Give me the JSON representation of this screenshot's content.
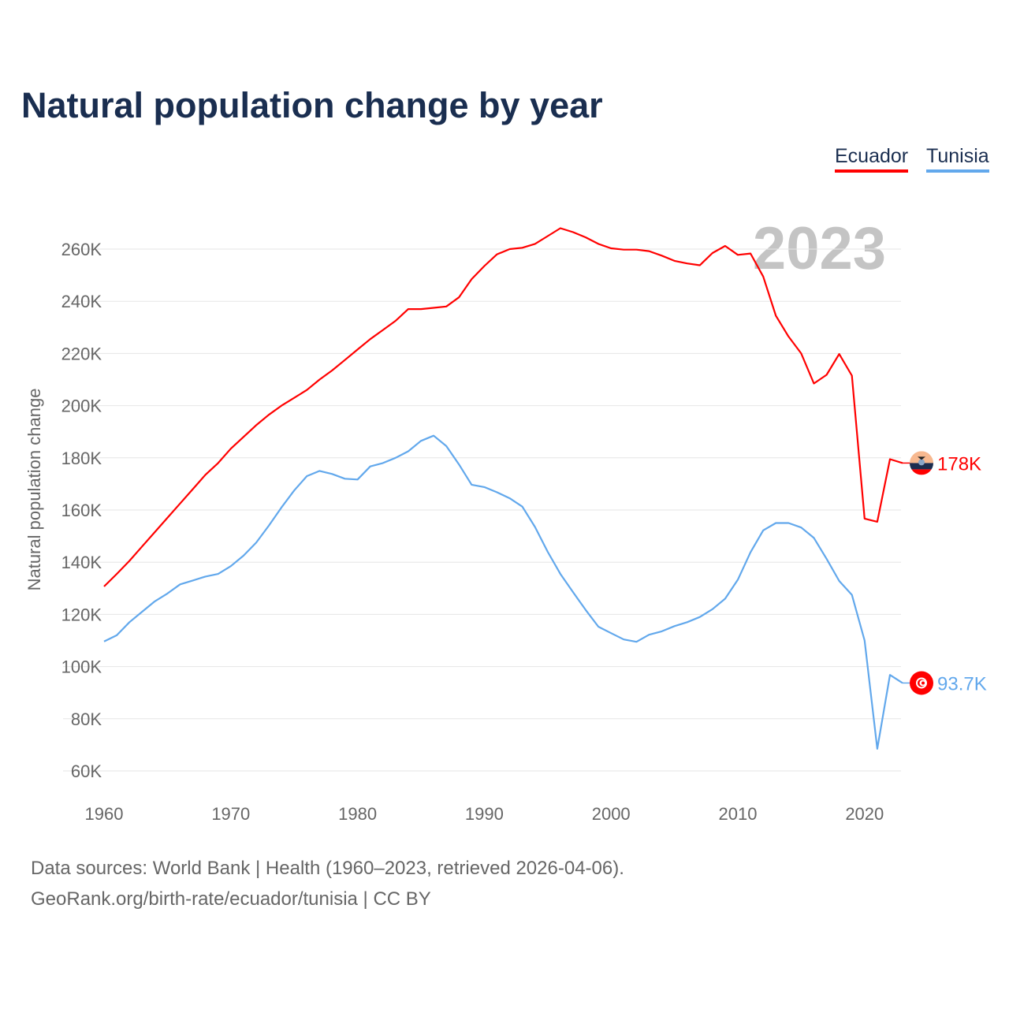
{
  "title": "Natural population change by year",
  "legend": [
    "Ecuador",
    "Tunisia"
  ],
  "footer": {
    "line1": "Data sources: World Bank | Health (1960–2023, retrieved 2026-04-06).",
    "line2": "GeoRank.org/birth-rate/ecuador/tunisia | CC BY"
  },
  "chart_data": {
    "type": "line",
    "title": "Natural population change by year",
    "ylabel": "Natural population change",
    "xlabel": "",
    "year_watermark": "2023",
    "xlim": [
      1960,
      2023
    ],
    "ylim": [
      60000,
      260000
    ],
    "x_ticks": [
      1960,
      1970,
      1980,
      1990,
      2000,
      2010,
      2020
    ],
    "x_tick_labels": [
      "1960",
      "1970",
      "1980",
      "1990",
      "2000",
      "2010",
      "2020"
    ],
    "y_ticks": [
      60000,
      80000,
      100000,
      120000,
      140000,
      160000,
      180000,
      200000,
      220000,
      240000,
      260000
    ],
    "y_tick_labels": [
      "60K",
      "80K",
      "100K",
      "120K",
      "140K",
      "160K",
      "180K",
      "200K",
      "220K",
      "240K",
      "260K"
    ],
    "grid": true,
    "legend_position": "top-right",
    "x_start": 1960,
    "series": [
      {
        "name": "Ecuador",
        "color": "#ff0000",
        "end_label": "178K",
        "flag": "ecuador-flag",
        "values_k": [
          130.7,
          135.5,
          140.5,
          146,
          151.5,
          157,
          162.5,
          168,
          173.5,
          178,
          183.5,
          188,
          192.5,
          196.5,
          200,
          203,
          206,
          210,
          213.5,
          217.5,
          221.5,
          225.5,
          229,
          232.5,
          237,
          237,
          237.5,
          238,
          241.5,
          248.5,
          253.5,
          258,
          260,
          260.5,
          262,
          265,
          268,
          266.5,
          264.5,
          262,
          260.3,
          259.8,
          259.8,
          259.2,
          257.5,
          255.5,
          254.5,
          253.8,
          258.5,
          261.2,
          257.8,
          258.3,
          249.5,
          234.5,
          226.5,
          220,
          208.5,
          211.8,
          219.8,
          211.5,
          156.7,
          155.5,
          179.5,
          178
        ]
      },
      {
        "name": "Tunisia",
        "color": "#62a8ec",
        "end_label": "93.7K",
        "flag": "tunisia-flag",
        "values_k": [
          109.6,
          112,
          117,
          121,
          125,
          128,
          131.5,
          133,
          134.5,
          135.5,
          138.5,
          142.5,
          147.5,
          154,
          161,
          167.5,
          173,
          175,
          173.8,
          172,
          171.7,
          176.7,
          178,
          180,
          182.5,
          186.5,
          188.5,
          184.5,
          177.5,
          169.7,
          168.8,
          166.8,
          164.5,
          161.3,
          153.5,
          144,
          135.5,
          128.5,
          121.7,
          115.3,
          112.8,
          110.4,
          109.5,
          112.2,
          113.5,
          115.5,
          117,
          119,
          122,
          126,
          133.3,
          143.8,
          152.2,
          155,
          155,
          153.3,
          149.3,
          141.3,
          132.8,
          127.5,
          110,
          68.5,
          96.8,
          93.7
        ]
      }
    ]
  }
}
